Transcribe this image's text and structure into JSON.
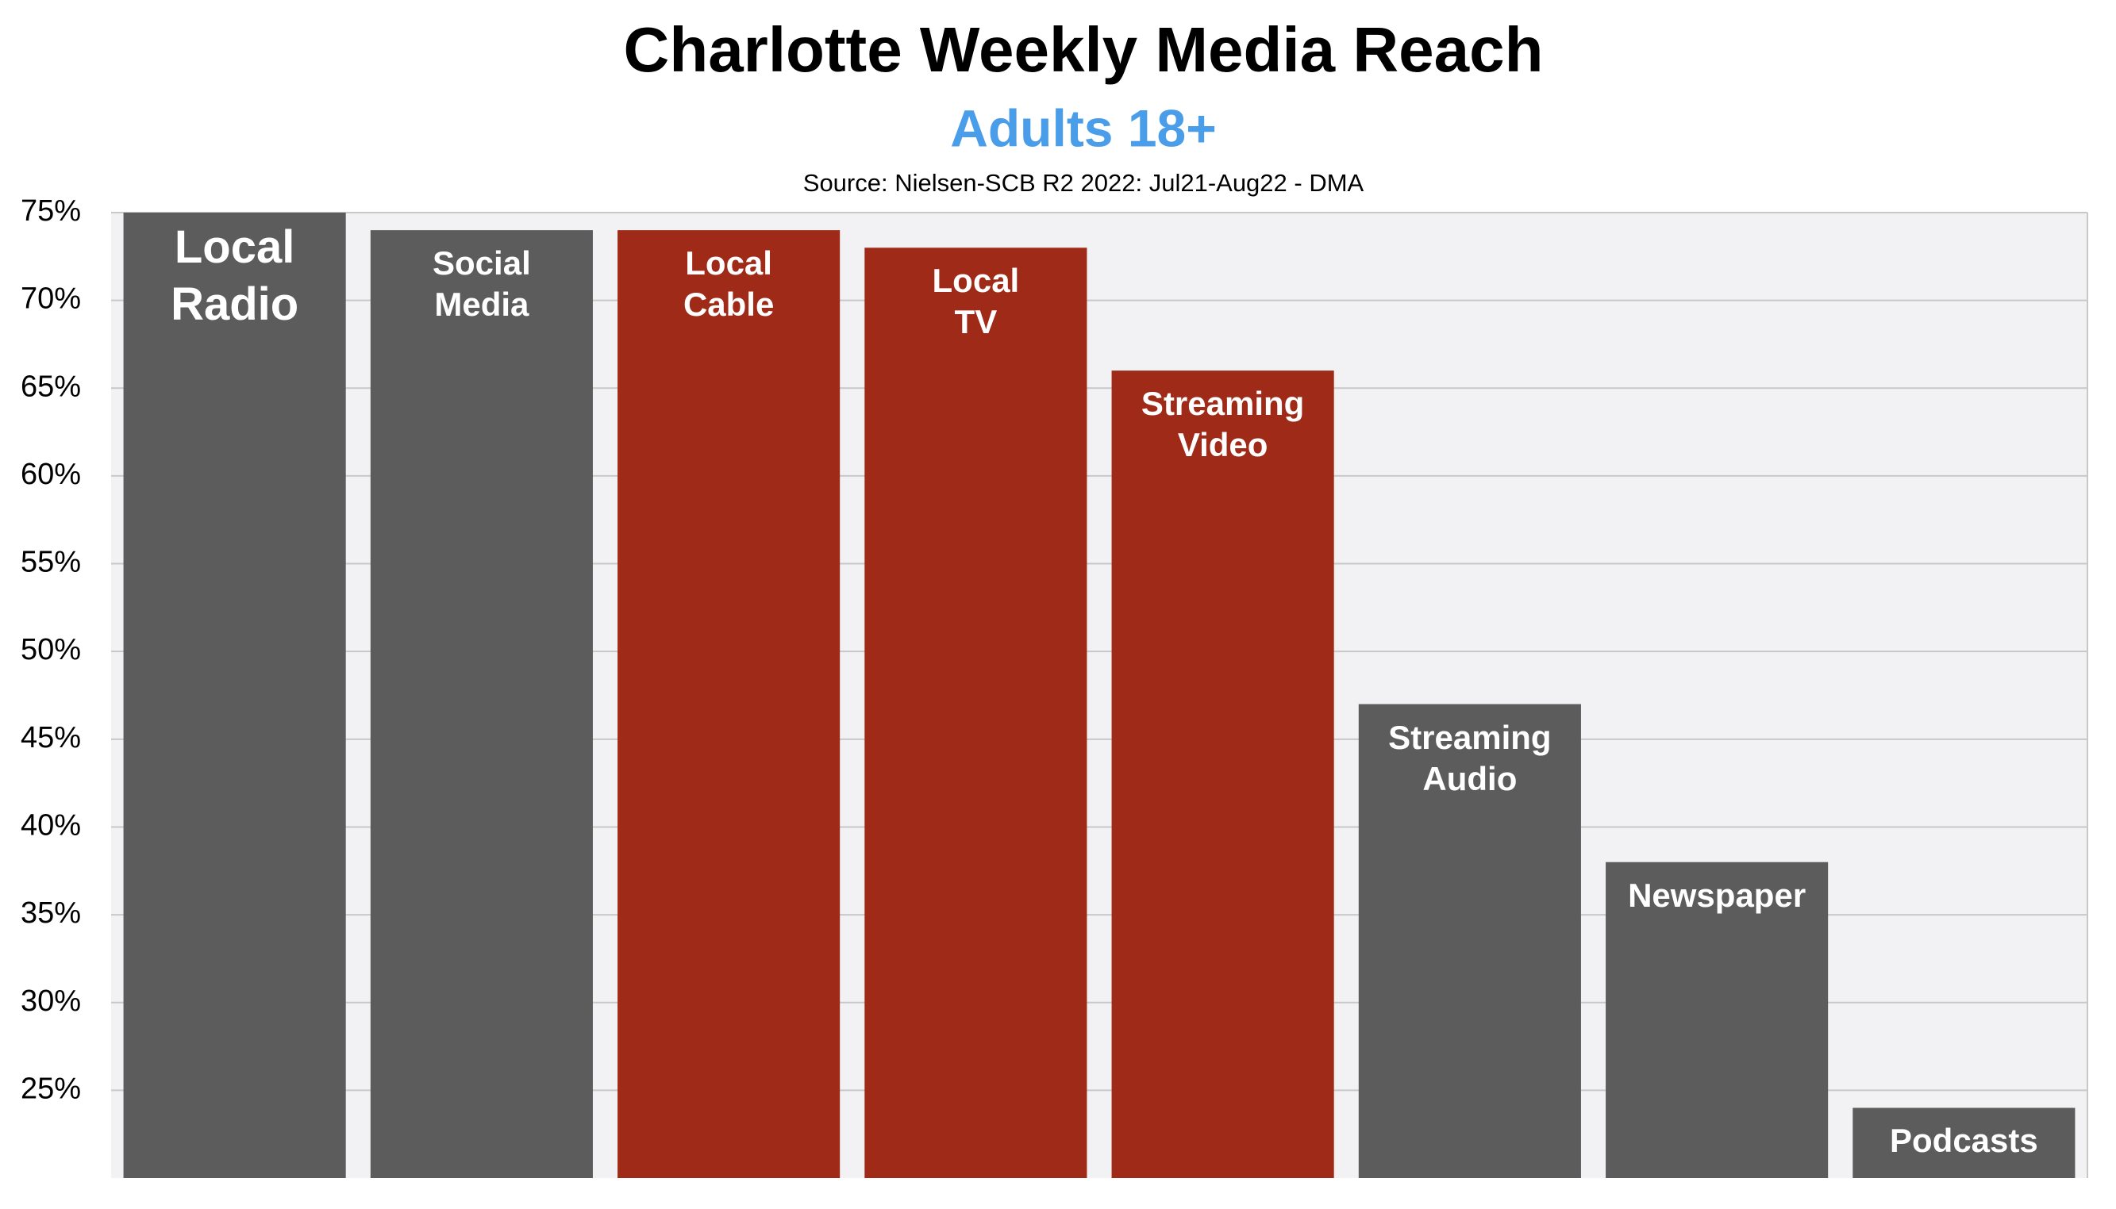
{
  "chart_data": {
    "type": "bar",
    "title": "Charlotte Weekly Media Reach",
    "subtitle": "Adults 18+",
    "source": "Source: Nielsen-SCB R2 2022: Jul21-Aug22 - DMA",
    "categories": [
      "Local Radio",
      "Social Media",
      "Local Cable",
      "Local TV",
      "Streaming Video",
      "Streaming Audio",
      "Newspaper",
      "Podcasts"
    ],
    "values": [
      75,
      74,
      74,
      73,
      66,
      47,
      38,
      24
    ],
    "colors": [
      "#5c5c5c",
      "#5c5c5c",
      "#a02a18",
      "#a02a18",
      "#a02a18",
      "#5c5c5c",
      "#5c5c5c",
      "#5c5c5c"
    ],
    "ylim": [
      20,
      75
    ],
    "yticks": [
      {
        "value": 25,
        "label": "25%"
      },
      {
        "value": 30,
        "label": "30%"
      },
      {
        "value": 35,
        "label": "35%"
      },
      {
        "value": 40,
        "label": "40%"
      },
      {
        "value": 45,
        "label": "45%"
      },
      {
        "value": 50,
        "label": "50%"
      },
      {
        "value": 55,
        "label": "55%"
      },
      {
        "value": 60,
        "label": "60%"
      },
      {
        "value": 65,
        "label": "65%"
      },
      {
        "value": 70,
        "label": "70%"
      },
      {
        "value": 75,
        "label": "75%"
      }
    ],
    "grid": true
  }
}
